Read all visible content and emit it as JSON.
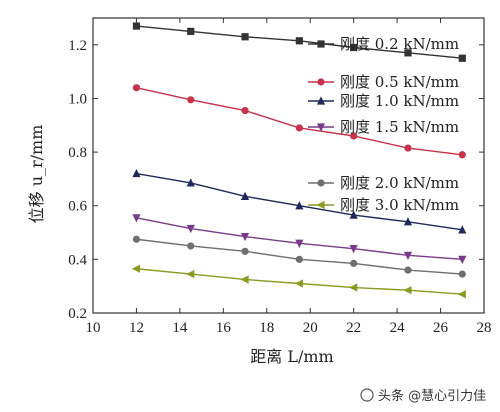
{
  "chart_data": {
    "type": "line",
    "xlabel": "距离 L/mm",
    "ylabel": "位移 u_r/mm",
    "xlim": [
      10,
      28
    ],
    "ylim": [
      0.2,
      1.3
    ],
    "xticks": [
      "10",
      "12",
      "14",
      "16",
      "18",
      "20",
      "22",
      "24",
      "26",
      "28"
    ],
    "yticks": [
      "0.2",
      "0.4",
      "0.6",
      "0.8",
      "1.0",
      "1.2"
    ],
    "grid": false,
    "legend": "inside-right",
    "x": [
      12,
      14.5,
      17,
      19.5,
      22,
      24.5,
      27
    ],
    "series": [
      {
        "name": "刚度 0.2 kN/mm",
        "color": "#333333",
        "marker": "square",
        "values": [
          1.27,
          1.25,
          1.23,
          1.215,
          1.19,
          1.17,
          1.15
        ]
      },
      {
        "name": "刚度 0.5 kN/mm",
        "color": "#c8324b",
        "marker": "circle",
        "values": [
          1.04,
          0.995,
          0.955,
          0.89,
          0.86,
          0.815,
          0.79
        ]
      },
      {
        "name": "刚度 1.0 kN/mm",
        "color": "#1f2a5c",
        "marker": "triangle-up",
        "values": [
          0.72,
          0.685,
          0.635,
          0.6,
          0.565,
          0.54,
          0.51
        ]
      },
      {
        "name": "刚度 1.5 kN/mm",
        "color": "#7a3a8c",
        "marker": "triangle-down",
        "values": [
          0.555,
          0.515,
          0.485,
          0.46,
          0.44,
          0.415,
          0.4
        ]
      },
      {
        "name": "刚度 2.0 kN/mm",
        "color": "#6e6e6e",
        "marker": "circle",
        "values": [
          0.475,
          0.45,
          0.43,
          0.4,
          0.385,
          0.36,
          0.345
        ]
      },
      {
        "name": "刚度 3.0 kN/mm",
        "color": "#8a9a1e",
        "marker": "triangle-left",
        "values": [
          0.365,
          0.345,
          0.325,
          0.31,
          0.295,
          0.285,
          0.27
        ]
      }
    ]
  },
  "watermark": {
    "text": "头条 @慧心引力佳"
  }
}
